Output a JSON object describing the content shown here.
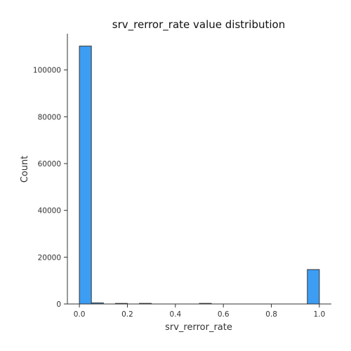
{
  "chart_data": {
    "type": "bar",
    "title": "srv_rerror_rate value distribution",
    "xlabel": "srv_rerror_rate",
    "ylabel": "Count",
    "xlim": [
      -0.05,
      1.05
    ],
    "ylim": [
      0,
      115500
    ],
    "x_ticks": [
      0.0,
      0.2,
      0.4,
      0.6,
      0.8,
      1.0
    ],
    "x_tick_labels": [
      "0.0",
      "0.2",
      "0.4",
      "0.6",
      "0.8",
      "1.0"
    ],
    "y_ticks": [
      0,
      20000,
      40000,
      60000,
      80000,
      100000
    ],
    "y_tick_labels": [
      "0",
      "20000",
      "40000",
      "60000",
      "80000",
      "100000"
    ],
    "bin_width": 0.05,
    "bins": [
      {
        "x_start": 0.0,
        "count": 110200
      },
      {
        "x_start": 0.05,
        "count": 450
      },
      {
        "x_start": 0.1,
        "count": 0
      },
      {
        "x_start": 0.15,
        "count": 200
      },
      {
        "x_start": 0.2,
        "count": 0
      },
      {
        "x_start": 0.25,
        "count": 250
      },
      {
        "x_start": 0.3,
        "count": 0
      },
      {
        "x_start": 0.35,
        "count": 0
      },
      {
        "x_start": 0.4,
        "count": 0
      },
      {
        "x_start": 0.45,
        "count": 0
      },
      {
        "x_start": 0.5,
        "count": 250
      },
      {
        "x_start": 0.55,
        "count": 0
      },
      {
        "x_start": 0.6,
        "count": 0
      },
      {
        "x_start": 0.65,
        "count": 0
      },
      {
        "x_start": 0.7,
        "count": 0
      },
      {
        "x_start": 0.75,
        "count": 0
      },
      {
        "x_start": 0.8,
        "count": 0
      },
      {
        "x_start": 0.85,
        "count": 0
      },
      {
        "x_start": 0.9,
        "count": 0
      },
      {
        "x_start": 0.95,
        "count": 14700
      }
    ],
    "bar_color": "#3d9df3",
    "edge_color": "#333333",
    "grid": false,
    "legend": "none"
  }
}
